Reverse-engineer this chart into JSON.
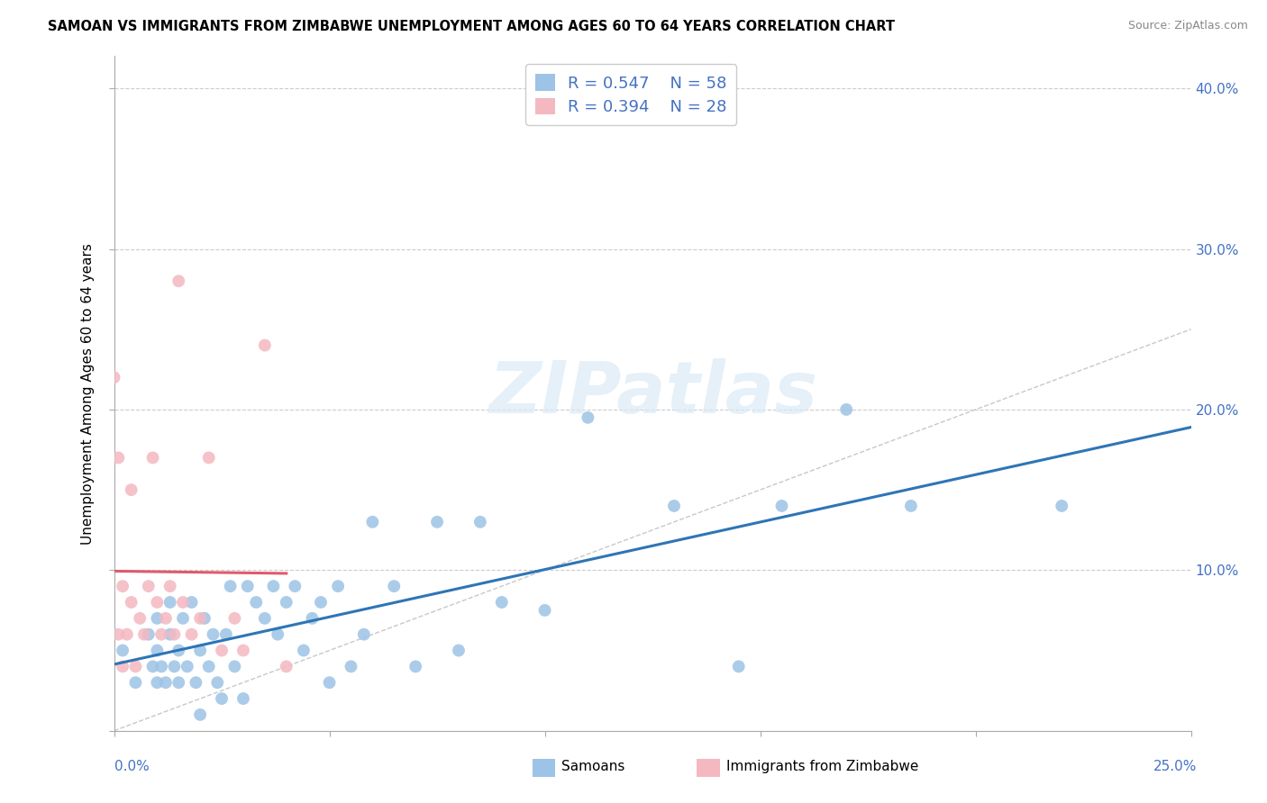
{
  "title": "SAMOAN VS IMMIGRANTS FROM ZIMBABWE UNEMPLOYMENT AMONG AGES 60 TO 64 YEARS CORRELATION CHART",
  "source": "Source: ZipAtlas.com",
  "ylabel": "Unemployment Among Ages 60 to 64 years",
  "xlim": [
    0,
    0.25
  ],
  "ylim": [
    0,
    0.42
  ],
  "samoans_R": 0.547,
  "samoans_N": 58,
  "zimbabwe_R": 0.394,
  "zimbabwe_N": 28,
  "legend_label_1": "Samoans",
  "legend_label_2": "Immigrants from Zimbabwe",
  "color_blue": "#9dc3e6",
  "color_pink": "#f4b8c1",
  "line_blue": "#2e75b6",
  "line_pink": "#e05a6d",
  "line_diagonal_color": "#c8c8c8",
  "text_blue": "#4472c4",
  "watermark_color": "#daeaf6",
  "samoans_x": [
    0.002,
    0.005,
    0.008,
    0.009,
    0.01,
    0.01,
    0.01,
    0.011,
    0.012,
    0.013,
    0.013,
    0.014,
    0.015,
    0.015,
    0.016,
    0.017,
    0.018,
    0.019,
    0.02,
    0.02,
    0.021,
    0.022,
    0.023,
    0.024,
    0.025,
    0.026,
    0.027,
    0.028,
    0.03,
    0.031,
    0.033,
    0.035,
    0.037,
    0.038,
    0.04,
    0.042,
    0.044,
    0.046,
    0.048,
    0.05,
    0.052,
    0.055,
    0.058,
    0.06,
    0.065,
    0.07,
    0.075,
    0.08,
    0.085,
    0.09,
    0.1,
    0.11,
    0.13,
    0.145,
    0.155,
    0.17,
    0.185,
    0.22
  ],
  "samoans_y": [
    0.05,
    0.03,
    0.06,
    0.04,
    0.03,
    0.05,
    0.07,
    0.04,
    0.03,
    0.08,
    0.06,
    0.04,
    0.03,
    0.05,
    0.07,
    0.04,
    0.08,
    0.03,
    0.01,
    0.05,
    0.07,
    0.04,
    0.06,
    0.03,
    0.02,
    0.06,
    0.09,
    0.04,
    0.02,
    0.09,
    0.08,
    0.07,
    0.09,
    0.06,
    0.08,
    0.09,
    0.05,
    0.07,
    0.08,
    0.03,
    0.09,
    0.04,
    0.06,
    0.13,
    0.09,
    0.04,
    0.13,
    0.05,
    0.13,
    0.08,
    0.075,
    0.195,
    0.14,
    0.04,
    0.14,
    0.2,
    0.14,
    0.14
  ],
  "zimbabwe_x": [
    0.0,
    0.001,
    0.001,
    0.002,
    0.002,
    0.003,
    0.004,
    0.004,
    0.005,
    0.006,
    0.007,
    0.008,
    0.009,
    0.01,
    0.011,
    0.012,
    0.013,
    0.014,
    0.015,
    0.016,
    0.018,
    0.02,
    0.022,
    0.025,
    0.028,
    0.03,
    0.035,
    0.04
  ],
  "zimbabwe_y": [
    0.22,
    0.06,
    0.17,
    0.04,
    0.09,
    0.06,
    0.15,
    0.08,
    0.04,
    0.07,
    0.06,
    0.09,
    0.17,
    0.08,
    0.06,
    0.07,
    0.09,
    0.06,
    0.28,
    0.08,
    0.06,
    0.07,
    0.17,
    0.05,
    0.07,
    0.05,
    0.24,
    0.04
  ],
  "ytick_positions": [
    0.0,
    0.1,
    0.2,
    0.3,
    0.4
  ],
  "xtick_positions": [
    0.0,
    0.05,
    0.1,
    0.15,
    0.2,
    0.25
  ]
}
